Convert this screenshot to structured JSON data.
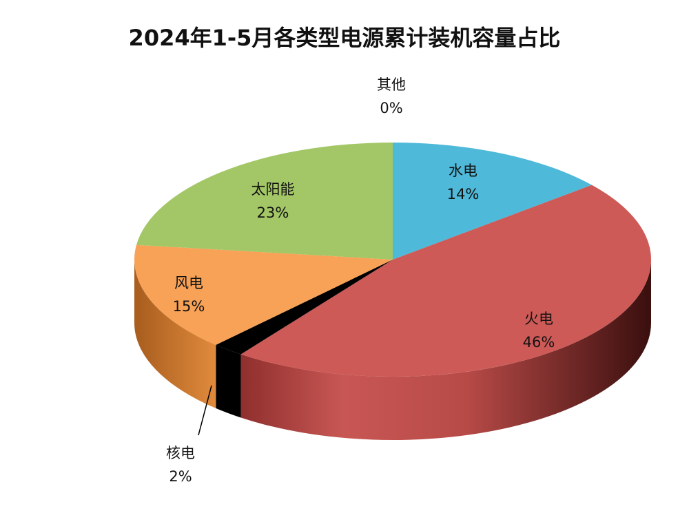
{
  "chart_data": {
    "type": "pie",
    "title": "2024年1-5月各类型电源累计装机容量占比",
    "slices": [
      {
        "name": "水电",
        "value": 14,
        "value_label": "14%",
        "color": "#4fb9d9"
      },
      {
        "name": "火电",
        "value": 46,
        "value_label": "46%",
        "color": "#cd5a57"
      },
      {
        "name": "核电",
        "value": 2,
        "value_label": "2%",
        "color": "#000000"
      },
      {
        "name": "风电",
        "value": 15,
        "value_label": "15%",
        "color": "#f7a257"
      },
      {
        "name": "太阳能",
        "value": 23,
        "value_label": "23%",
        "color": "#a3c766"
      },
      {
        "name": "其他",
        "value": 0,
        "value_label": "0%",
        "color": "#7f7f7f"
      }
    ],
    "style": "3d-pie",
    "legend": "none"
  }
}
